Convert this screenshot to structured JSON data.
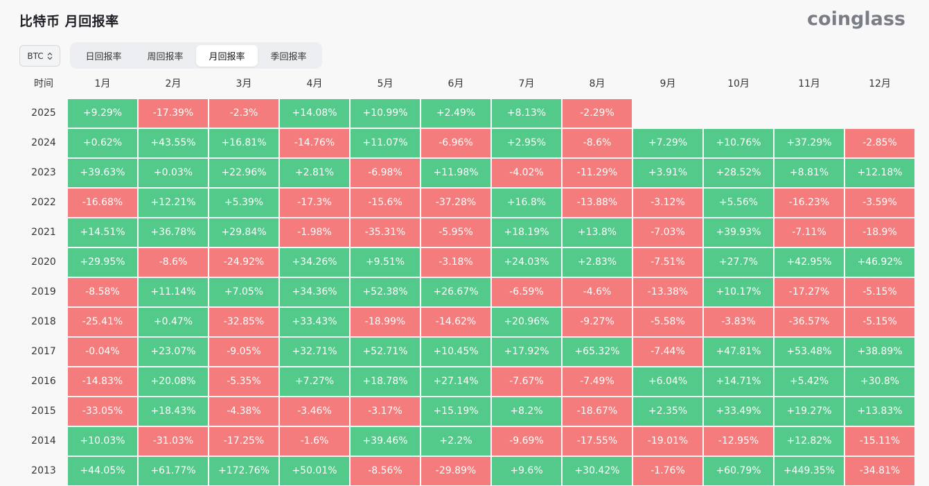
{
  "page_title": "比特币 月回报率",
  "logo": "coinglass",
  "coin_selector": {
    "value": "BTC"
  },
  "tabs": [
    {
      "label": "日回报率",
      "active": false
    },
    {
      "label": "周回报率",
      "active": false
    },
    {
      "label": "月回报率",
      "active": true
    },
    {
      "label": "季回报率",
      "active": false
    }
  ],
  "colors": {
    "positive": "#53c98a",
    "negative": "#f47c7c"
  },
  "chart_data": {
    "type": "heatmap",
    "row_header": "时间",
    "columns": [
      "1月",
      "2月",
      "3月",
      "4月",
      "5月",
      "6月",
      "7月",
      "8月",
      "9月",
      "10月",
      "11月",
      "12月"
    ],
    "rows": [
      {
        "year": "2025",
        "values": [
          "+9.29%",
          "-17.39%",
          "-2.3%",
          "+14.08%",
          "+10.99%",
          "+2.49%",
          "+8.13%",
          "-2.29%",
          "",
          "",
          "",
          ""
        ]
      },
      {
        "year": "2024",
        "values": [
          "+0.62%",
          "+43.55%",
          "+16.81%",
          "-14.76%",
          "+11.07%",
          "-6.96%",
          "+2.95%",
          "-8.6%",
          "+7.29%",
          "+10.76%",
          "+37.29%",
          "-2.85%"
        ]
      },
      {
        "year": "2023",
        "values": [
          "+39.63%",
          "+0.03%",
          "+22.96%",
          "+2.81%",
          "-6.98%",
          "+11.98%",
          "-4.02%",
          "-11.29%",
          "+3.91%",
          "+28.52%",
          "+8.81%",
          "+12.18%"
        ]
      },
      {
        "year": "2022",
        "values": [
          "-16.68%",
          "+12.21%",
          "+5.39%",
          "-17.3%",
          "-15.6%",
          "-37.28%",
          "+16.8%",
          "-13.88%",
          "-3.12%",
          "+5.56%",
          "-16.23%",
          "-3.59%"
        ]
      },
      {
        "year": "2021",
        "values": [
          "+14.51%",
          "+36.78%",
          "+29.84%",
          "-1.98%",
          "-35.31%",
          "-5.95%",
          "+18.19%",
          "+13.8%",
          "-7.03%",
          "+39.93%",
          "-7.11%",
          "-18.9%"
        ]
      },
      {
        "year": "2020",
        "values": [
          "+29.95%",
          "-8.6%",
          "-24.92%",
          "+34.26%",
          "+9.51%",
          "-3.18%",
          "+24.03%",
          "+2.83%",
          "-7.51%",
          "+27.7%",
          "+42.95%",
          "+46.92%"
        ]
      },
      {
        "year": "2019",
        "values": [
          "-8.58%",
          "+11.14%",
          "+7.05%",
          "+34.36%",
          "+52.38%",
          "+26.67%",
          "-6.59%",
          "-4.6%",
          "-13.38%",
          "+10.17%",
          "-17.27%",
          "-5.15%"
        ]
      },
      {
        "year": "2018",
        "values": [
          "-25.41%",
          "+0.47%",
          "-32.85%",
          "+33.43%",
          "-18.99%",
          "-14.62%",
          "+20.96%",
          "-9.27%",
          "-5.58%",
          "-3.83%",
          "-36.57%",
          "-5.15%"
        ]
      },
      {
        "year": "2017",
        "values": [
          "-0.04%",
          "+23.07%",
          "-9.05%",
          "+32.71%",
          "+52.71%",
          "+10.45%",
          "+17.92%",
          "+65.32%",
          "-7.44%",
          "+47.81%",
          "+53.48%",
          "+38.89%"
        ]
      },
      {
        "year": "2016",
        "values": [
          "-14.83%",
          "+20.08%",
          "-5.35%",
          "+7.27%",
          "+18.78%",
          "+27.14%",
          "-7.67%",
          "-7.49%",
          "+6.04%",
          "+14.71%",
          "+5.42%",
          "+30.8%"
        ]
      },
      {
        "year": "2015",
        "values": [
          "-33.05%",
          "+18.43%",
          "-4.38%",
          "-3.46%",
          "-3.17%",
          "+15.19%",
          "+8.2%",
          "-18.67%",
          "+2.35%",
          "+33.49%",
          "+19.27%",
          "+13.83%"
        ]
      },
      {
        "year": "2014",
        "values": [
          "+10.03%",
          "-31.03%",
          "-17.25%",
          "-1.6%",
          "+39.46%",
          "+2.2%",
          "-9.69%",
          "-17.55%",
          "-19.01%",
          "-12.95%",
          "+12.82%",
          "-15.11%"
        ]
      },
      {
        "year": "2013",
        "values": [
          "+44.05%",
          "+61.77%",
          "+172.76%",
          "+50.01%",
          "-8.56%",
          "-29.89%",
          "+9.6%",
          "+30.42%",
          "-1.76%",
          "+60.79%",
          "+449.35%",
          "-34.81%"
        ]
      }
    ]
  }
}
